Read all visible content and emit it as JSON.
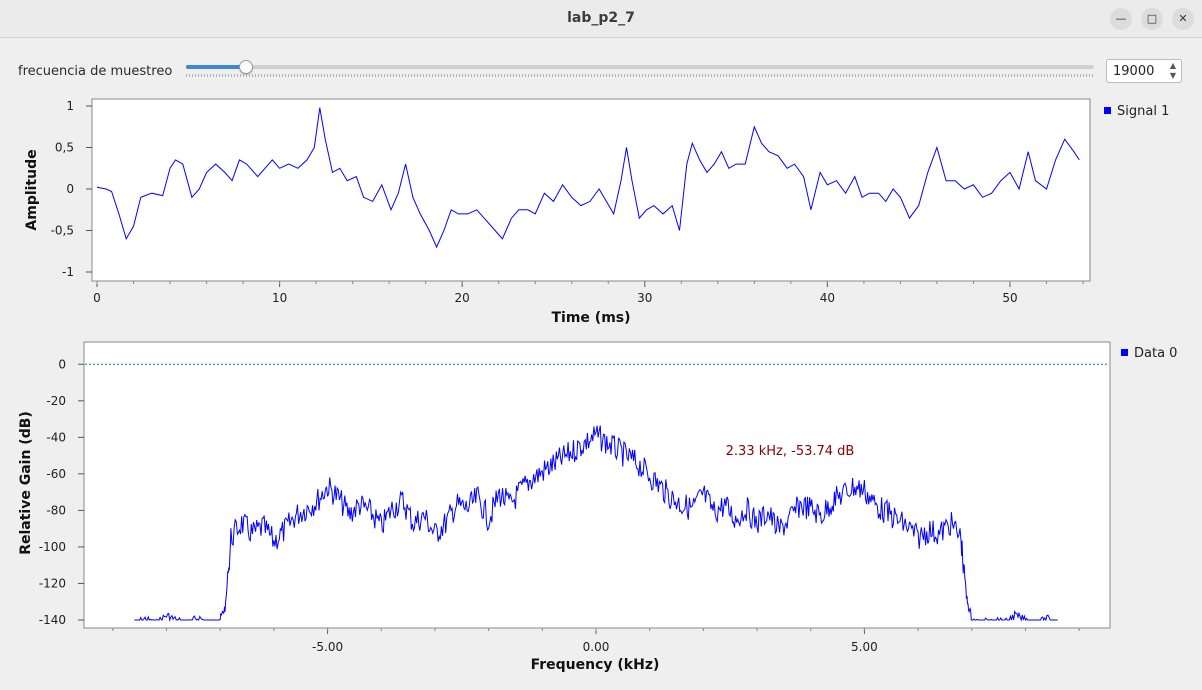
{
  "window": {
    "title": "lab_p2_7",
    "minimize_icon": "minimize-icon",
    "maximize_icon": "maximize-icon",
    "close_icon": "close-icon"
  },
  "controls": {
    "slider_label": "frecuencia de muestreo",
    "sample_rate": "19000",
    "slider_position": 0.065
  },
  "colors": {
    "trace": "#0000ff",
    "reference": "#008b8b",
    "marker_text": "#8b0000",
    "accent": "#3c87d6"
  },
  "time_plot": {
    "legend": "Signal 1",
    "chart_data": {
      "type": "line",
      "xlabel": "Time (ms)",
      "ylabel": "Amplitude",
      "xlim": [
        0,
        54
      ],
      "ylim": [
        -1,
        1
      ],
      "x_ticks": [
        "0",
        "10",
        "20",
        "30",
        "40",
        "50"
      ],
      "y_ticks": [
        "1",
        "0,5",
        "0",
        "-0,5",
        "-1"
      ],
      "series": [
        {
          "name": "Signal 1",
          "points": [
            [
              0,
              0.02
            ],
            [
              0.5,
              0.0
            ],
            [
              0.8,
              -0.03
            ],
            [
              1.2,
              -0.3
            ],
            [
              1.6,
              -0.6
            ],
            [
              2.0,
              -0.45
            ],
            [
              2.4,
              -0.1
            ],
            [
              3.0,
              -0.05
            ],
            [
              3.6,
              -0.08
            ],
            [
              4.0,
              0.25
            ],
            [
              4.3,
              0.35
            ],
            [
              4.7,
              0.3
            ],
            [
              5.2,
              -0.1
            ],
            [
              5.6,
              0.0
            ],
            [
              6.0,
              0.2
            ],
            [
              6.5,
              0.3
            ],
            [
              7.0,
              0.2
            ],
            [
              7.4,
              0.1
            ],
            [
              7.8,
              0.35
            ],
            [
              8.2,
              0.3
            ],
            [
              8.8,
              0.15
            ],
            [
              9.2,
              0.25
            ],
            [
              9.6,
              0.35
            ],
            [
              10.0,
              0.25
            ],
            [
              10.5,
              0.3
            ],
            [
              11.0,
              0.25
            ],
            [
              11.5,
              0.35
            ],
            [
              11.9,
              0.5
            ],
            [
              12.2,
              0.98
            ],
            [
              12.5,
              0.6
            ],
            [
              12.9,
              0.2
            ],
            [
              13.3,
              0.25
            ],
            [
              13.7,
              0.1
            ],
            [
              14.2,
              0.15
            ],
            [
              14.6,
              -0.1
            ],
            [
              15.1,
              -0.15
            ],
            [
              15.6,
              0.05
            ],
            [
              16.1,
              -0.25
            ],
            [
              16.5,
              -0.05
            ],
            [
              16.9,
              0.3
            ],
            [
              17.3,
              -0.1
            ],
            [
              17.7,
              -0.3
            ],
            [
              18.2,
              -0.5
            ],
            [
              18.6,
              -0.7
            ],
            [
              19.0,
              -0.5
            ],
            [
              19.4,
              -0.25
            ],
            [
              19.8,
              -0.3
            ],
            [
              20.3,
              -0.3
            ],
            [
              20.8,
              -0.25
            ],
            [
              21.2,
              -0.35
            ],
            [
              21.8,
              -0.5
            ],
            [
              22.2,
              -0.6
            ],
            [
              22.7,
              -0.35
            ],
            [
              23.1,
              -0.25
            ],
            [
              23.6,
              -0.25
            ],
            [
              24.0,
              -0.3
            ],
            [
              24.5,
              -0.05
            ],
            [
              25.0,
              -0.15
            ],
            [
              25.5,
              0.05
            ],
            [
              26.0,
              -0.1
            ],
            [
              26.5,
              -0.2
            ],
            [
              27.0,
              -0.15
            ],
            [
              27.5,
              0.0
            ],
            [
              27.9,
              -0.15
            ],
            [
              28.3,
              -0.3
            ],
            [
              28.7,
              0.1
            ],
            [
              29.0,
              0.5
            ],
            [
              29.3,
              0.1
            ],
            [
              29.7,
              -0.35
            ],
            [
              30.1,
              -0.25
            ],
            [
              30.5,
              -0.2
            ],
            [
              31.0,
              -0.3
            ],
            [
              31.5,
              -0.2
            ],
            [
              31.9,
              -0.5
            ],
            [
              32.3,
              0.3
            ],
            [
              32.6,
              0.55
            ],
            [
              33.0,
              0.35
            ],
            [
              33.4,
              0.2
            ],
            [
              33.8,
              0.3
            ],
            [
              34.2,
              0.45
            ],
            [
              34.6,
              0.25
            ],
            [
              35.0,
              0.3
            ],
            [
              35.5,
              0.3
            ],
            [
              36.0,
              0.75
            ],
            [
              36.4,
              0.55
            ],
            [
              36.8,
              0.45
            ],
            [
              37.3,
              0.4
            ],
            [
              37.8,
              0.25
            ],
            [
              38.2,
              0.3
            ],
            [
              38.7,
              0.15
            ],
            [
              39.1,
              -0.25
            ],
            [
              39.6,
              0.2
            ],
            [
              40.0,
              0.05
            ],
            [
              40.5,
              0.1
            ],
            [
              41.0,
              -0.05
            ],
            [
              41.5,
              0.15
            ],
            [
              41.9,
              -0.1
            ],
            [
              42.3,
              -0.05
            ],
            [
              42.8,
              -0.05
            ],
            [
              43.2,
              -0.15
            ],
            [
              43.6,
              0.0
            ],
            [
              44.0,
              -0.1
            ],
            [
              44.5,
              -0.35
            ],
            [
              45.0,
              -0.2
            ],
            [
              45.5,
              0.2
            ],
            [
              46.0,
              0.5
            ],
            [
              46.5,
              0.1
            ],
            [
              47.0,
              0.1
            ],
            [
              47.5,
              0.0
            ],
            [
              48.0,
              0.05
            ],
            [
              48.5,
              -0.1
            ],
            [
              49.0,
              -0.05
            ],
            [
              49.5,
              0.1
            ],
            [
              50.0,
              0.2
            ],
            [
              50.5,
              0.0
            ],
            [
              51.0,
              0.45
            ],
            [
              51.4,
              0.1
            ],
            [
              52.0,
              0.0
            ],
            [
              52.5,
              0.35
            ],
            [
              53.0,
              0.6
            ],
            [
              53.5,
              0.45
            ],
            [
              53.8,
              0.35
            ]
          ]
        }
      ]
    }
  },
  "freq_plot": {
    "legend": "Data 0",
    "marker_label": "2.33 kHz, -53.74 dB",
    "chart_data": {
      "type": "line",
      "xlabel": "Frequency (kHz)",
      "ylabel": "Relative Gain (dB)",
      "xlim": [
        -9.5,
        9.5
      ],
      "ylim": [
        -140,
        10
      ],
      "x_ticks": [
        "-5.00",
        "0.00",
        "5.00"
      ],
      "y_ticks": [
        "0",
        "-20",
        "-40",
        "-60",
        "-80",
        "-100",
        "-120",
        "-140"
      ],
      "reference_line": 0,
      "series": [
        {
          "name": "Data 0",
          "points": [
            [
              -8.6,
              -140
            ],
            [
              -8.4,
              -137
            ],
            [
              -8.2,
              -140
            ],
            [
              -8.0,
              -135
            ],
            [
              -7.8,
              -138
            ],
            [
              -7.6,
              -140
            ],
            [
              -7.4,
              -136
            ],
            [
              -7.2,
              -140
            ],
            [
              -7.0,
              -137
            ],
            [
              -6.9,
              -130
            ],
            [
              -6.8,
              -88
            ],
            [
              -6.6,
              -80
            ],
            [
              -6.4,
              -86
            ],
            [
              -6.2,
              -82
            ],
            [
              -6.0,
              -90
            ],
            [
              -5.8,
              -84
            ],
            [
              -5.6,
              -76
            ],
            [
              -5.4,
              -72
            ],
            [
              -5.2,
              -68
            ],
            [
              -5.0,
              -60
            ],
            [
              -4.8,
              -66
            ],
            [
              -4.6,
              -75
            ],
            [
              -4.4,
              -70
            ],
            [
              -4.2,
              -74
            ],
            [
              -4.0,
              -82
            ],
            [
              -3.8,
              -72
            ],
            [
              -3.6,
              -68
            ],
            [
              -3.4,
              -80
            ],
            [
              -3.2,
              -76
            ],
            [
              -3.0,
              -86
            ],
            [
              -2.8,
              -80
            ],
            [
              -2.6,
              -70
            ],
            [
              -2.4,
              -72
            ],
            [
              -2.2,
              -66
            ],
            [
              -2.0,
              -78
            ],
            [
              -1.8,
              -64
            ],
            [
              -1.6,
              -70
            ],
            [
              -1.4,
              -62
            ],
            [
              -1.2,
              -56
            ],
            [
              -1.0,
              -52
            ],
            [
              -0.8,
              -48
            ],
            [
              -0.6,
              -44
            ],
            [
              -0.4,
              -40
            ],
            [
              -0.2,
              -36
            ],
            [
              0.0,
              -32
            ],
            [
              0.2,
              -36
            ],
            [
              0.4,
              -40
            ],
            [
              0.6,
              -44
            ],
            [
              0.8,
              -48
            ],
            [
              1.0,
              -54
            ],
            [
              1.2,
              -60
            ],
            [
              1.4,
              -66
            ],
            [
              1.6,
              -70
            ],
            [
              1.8,
              -72
            ],
            [
              2.0,
              -64
            ],
            [
              2.2,
              -74
            ],
            [
              2.4,
              -70
            ],
            [
              2.6,
              -78
            ],
            [
              2.8,
              -72
            ],
            [
              3.0,
              -80
            ],
            [
              3.2,
              -74
            ],
            [
              3.4,
              -84
            ],
            [
              3.6,
              -78
            ],
            [
              3.8,
              -70
            ],
            [
              4.0,
              -72
            ],
            [
              4.2,
              -76
            ],
            [
              4.4,
              -68
            ],
            [
              4.6,
              -64
            ],
            [
              4.8,
              -60
            ],
            [
              5.0,
              -62
            ],
            [
              5.2,
              -70
            ],
            [
              5.4,
              -74
            ],
            [
              5.6,
              -78
            ],
            [
              5.8,
              -82
            ],
            [
              6.0,
              -88
            ],
            [
              6.2,
              -84
            ],
            [
              6.4,
              -86
            ],
            [
              6.6,
              -80
            ],
            [
              6.8,
              -88
            ],
            [
              6.9,
              -125
            ],
            [
              7.0,
              -137
            ],
            [
              7.2,
              -140
            ],
            [
              7.4,
              -136
            ],
            [
              7.6,
              -140
            ],
            [
              7.8,
              -135
            ],
            [
              8.0,
              -138
            ],
            [
              8.2,
              -140
            ],
            [
              8.4,
              -137
            ],
            [
              8.6,
              -140
            ]
          ]
        }
      ]
    }
  }
}
